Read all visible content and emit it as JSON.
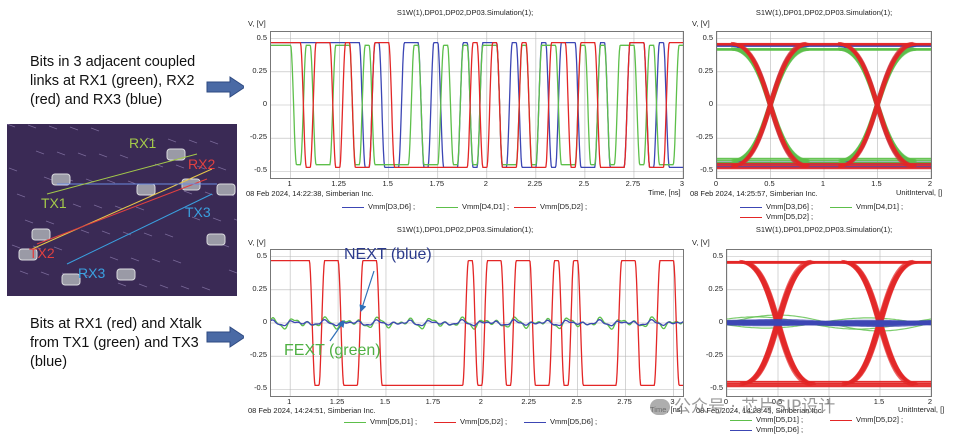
{
  "captions": {
    "top": "Bits in 3 adjacent coupled links at RX1 (green), RX2 (red) and RX3 (blue)",
    "bottom": "Bits at RX1 (red) and Xtalk from TX1 (green) and TX3 (blue)"
  },
  "layout_labels": [
    "RX1",
    "RX2",
    "TX1",
    "TX3",
    "TX2",
    "RX3"
  ],
  "colors": {
    "blue": "#3c46b4",
    "green": "#5dbf4a",
    "red": "#e32626"
  },
  "annotations": {
    "next": "NEXT (blue)",
    "fext": "FEXT (green)"
  },
  "watermark": "公众号 · 芯片SIP设计",
  "panels": {
    "tl": {
      "title": "S1W(1),DP01,DP02,DP03.Simulation(1);",
      "ylabel": "V, [V]",
      "xlabel": "Time, [ns]",
      "stamp": "08 Feb 2024, 14:22:38, Simberian Inc.",
      "legend": [
        "Vmm[D3,D6] ;",
        "Vmm[D4,D1] ;",
        "Vmm[D5,D2] ;"
      ]
    },
    "tr": {
      "title": "S1W(1),DP01,DP02,DP03.Simulation(1);",
      "ylabel": "V, [V]",
      "xlabel": "UnitInterval, []",
      "stamp": "08 Feb 2024, 14:25:57, Simberian Inc.",
      "legend": [
        "Vmm[D3,D6] ;",
        "Vmm[D4,D1] ;",
        "Vmm[D5,D2] ;"
      ]
    },
    "bl": {
      "title": "S1W(1),DP01,DP02,DP03.Simulation(1);",
      "ylabel": "V, [V]",
      "xlabel": "Time, [ns]",
      "stamp": "08 Feb 2024, 14:24:51, Simberian Inc.",
      "legend": [
        "Vmm[D5,D1] ;",
        "Vmm[D5,D2] ;",
        "Vmm[D5,D6] ;"
      ]
    },
    "br": {
      "title": "S1W(1),DP01,DP02,DP03.Simulation(1);",
      "ylabel": "V, [V]",
      "xlabel": "UnitInterval, []",
      "stamp": "08 Feb 2024, 14:28:45, Simberian Inc.",
      "legend": [
        "Vmm[D5,D1] ;",
        "Vmm[D5,D2] ;",
        "Vmm[D5,D6] ;"
      ]
    }
  },
  "chart_data": [
    {
      "type": "line",
      "id": "tl",
      "xlim": [
        0.9,
        3.0
      ],
      "ylim": [
        -0.55,
        0.55
      ],
      "xticks": [
        1,
        1.25,
        1.5,
        1.75,
        2,
        2.25,
        2.5,
        2.75,
        3
      ],
      "xticklabels": [
        "1",
        "1.25",
        "1.5",
        "1.75",
        "2",
        "2.25",
        "2.5",
        "2.75",
        "3"
      ],
      "yticks": [
        0.5,
        0.25,
        0,
        -0.25,
        -0.5
      ],
      "yticklabels": [
        "0.5",
        "0.25",
        "0",
        "-0.25",
        "-0.5"
      ],
      "grid": true,
      "ui_ns": 0.05,
      "series": [
        {
          "name": "Vmm[D3,D6] ;",
          "color": "blue",
          "amp": 0.47,
          "bits": "111111111010011010010110100101100100110100101101"
        },
        {
          "name": "Vmm[D4,D1] ;",
          "color": "green",
          "amp": 0.45,
          "bits": "110100110100001001010110010110010101101001011001"
        },
        {
          "name": "Vmm[D5,D2] ;",
          "color": "red",
          "amp": 0.47,
          "bits": "111011010011000000001010010011011000110011011001"
        }
      ]
    },
    {
      "type": "line",
      "id": "tr",
      "subtype": "eye",
      "xlim": [
        0,
        2
      ],
      "ylim": [
        -0.55,
        0.55
      ],
      "xticks": [
        0,
        0.5,
        1,
        1.5,
        2
      ],
      "xticklabels": [
        "0",
        "0.5",
        "1",
        "1.5",
        "2"
      ],
      "yticks": [
        0.5,
        0.25,
        0,
        -0.25,
        -0.5
      ],
      "yticklabels": [
        "0.5",
        "0.25",
        "0",
        "-0.25",
        "-0.5"
      ],
      "grid": true,
      "series": [
        {
          "name": "Vmm[D3,D6] ;",
          "color": "blue",
          "amp": 0.46
        },
        {
          "name": "Vmm[D4,D1] ;",
          "color": "green",
          "amp": 0.43
        },
        {
          "name": "Vmm[D5,D2] ;",
          "color": "red",
          "amp": 0.47
        }
      ]
    },
    {
      "type": "line",
      "id": "bl",
      "xlim": [
        0.9,
        3.05
      ],
      "ylim": [
        -0.55,
        0.55
      ],
      "xticks": [
        1,
        1.25,
        1.5,
        1.75,
        2,
        2.25,
        2.5,
        2.75,
        3
      ],
      "xticklabels": [
        "1",
        "1.25",
        "1.5",
        "1.75",
        "2",
        "2.25",
        "2.5",
        "2.75",
        "3"
      ],
      "yticks": [
        0.5,
        0.25,
        0,
        -0.25,
        -0.5
      ],
      "yticklabels": [
        "0.5",
        "0.25",
        "0",
        "-0.25",
        "-0.5"
      ],
      "grid": true,
      "ui_ns": 0.05,
      "series": [
        {
          "name": "Vmm[D5,D1] ;",
          "color": "green",
          "amp": 0.04,
          "type": "xtalk",
          "ripple": 0.035
        },
        {
          "name": "Vmm[D5,D2] ;",
          "color": "red",
          "amp": 0.47,
          "bits": "111101100110000000001011011001010000110011001111"
        },
        {
          "name": "Vmm[D5,D6] ;",
          "color": "blue",
          "amp": 0.02,
          "type": "xtalk",
          "ripple": 0.02
        }
      ]
    },
    {
      "type": "line",
      "id": "br",
      "subtype": "eye",
      "xlim": [
        0,
        2
      ],
      "ylim": [
        -0.55,
        0.55
      ],
      "xticks": [
        0,
        0.5,
        1,
        1.5,
        2
      ],
      "xticklabels": [
        "0",
        "0.5",
        "1",
        "1.5",
        "2"
      ],
      "yticks": [
        0.5,
        0.25,
        0,
        -0.25,
        -0.5
      ],
      "yticklabels": [
        "0.5",
        "0.25",
        "0",
        "-0.25",
        "-0.5"
      ],
      "grid": true,
      "series": [
        {
          "name": "Vmm[D5,D1] ;",
          "color": "green",
          "amp": 0.06,
          "type": "xtalk"
        },
        {
          "name": "Vmm[D5,D2] ;",
          "color": "red",
          "amp": 0.47
        },
        {
          "name": "Vmm[D5,D6] ;",
          "color": "blue",
          "amp": 0.015,
          "type": "xtalk"
        }
      ]
    }
  ]
}
